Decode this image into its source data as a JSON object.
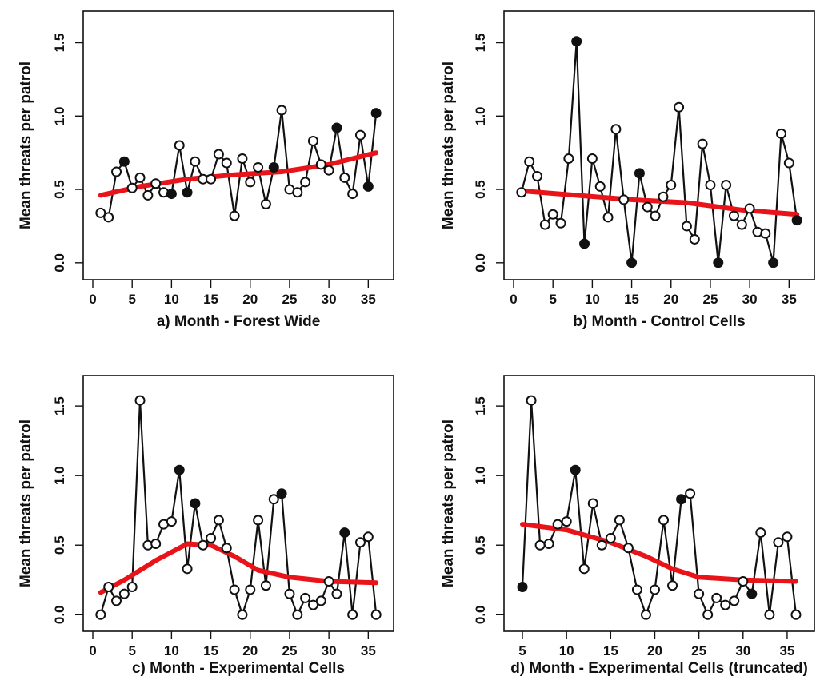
{
  "chart_data": [
    {
      "type": "line",
      "xlabel": "a) Month - Forest Wide",
      "ylabel": "Mean threats per patrol",
      "xlim": [
        0,
        37
      ],
      "ylim": [
        -0.05,
        1.65
      ],
      "xticks": [
        "0",
        "5",
        "10",
        "15",
        "20",
        "25",
        "30",
        "35"
      ],
      "yticks": [
        "0.0",
        "0.5",
        "1.0",
        "1.5"
      ],
      "grid": false,
      "series": [
        {
          "x": [
            1,
            2,
            3,
            4,
            5,
            6,
            7,
            8,
            9,
            10,
            11,
            12,
            13,
            14,
            15,
            16,
            17,
            18,
            19,
            20,
            21,
            22,
            23,
            24,
            25,
            26,
            27,
            28,
            29,
            30,
            31,
            32,
            33,
            34,
            35,
            36
          ],
          "y": [
            0.34,
            0.31,
            0.62,
            0.69,
            0.51,
            0.58,
            0.46,
            0.54,
            0.48,
            0.47,
            0.8,
            0.48,
            0.69,
            0.57,
            0.57,
            0.74,
            0.68,
            0.32,
            0.71,
            0.55,
            0.65,
            0.4,
            0.65,
            1.04,
            0.5,
            0.48,
            0.55,
            0.83,
            0.67,
            0.63,
            0.92,
            0.58,
            0.47,
            0.87,
            0.52,
            1.02
          ]
        },
        {
          "x": [
            1,
            36
          ],
          "y": [
            0.46,
            0.75
          ]
        }
      ],
      "trend": {
        "x": [
          1,
          6,
          12,
          18,
          24,
          30,
          36
        ],
        "y": [
          0.46,
          0.52,
          0.57,
          0.6,
          0.62,
          0.67,
          0.75
        ],
        "color": "#e8141a"
      }
    },
    {
      "type": "line",
      "xlabel": "b) Month - Control Cells",
      "ylabel": "Mean threats per patrol",
      "xlim": [
        0,
        37
      ],
      "ylim": [
        -0.05,
        1.65
      ],
      "xticks": [
        "0",
        "5",
        "10",
        "15",
        "20",
        "25",
        "30",
        "35"
      ],
      "yticks": [
        "0.0",
        "0.5",
        "1.0",
        "1.5"
      ],
      "grid": false,
      "series": [
        {
          "x": [
            1,
            2,
            3,
            4,
            5,
            6,
            7,
            8,
            9,
            10,
            11,
            12,
            13,
            14,
            15,
            16,
            17,
            18,
            19,
            20,
            21,
            22,
            23,
            24,
            25,
            26,
            27,
            28,
            29,
            30,
            31,
            32,
            33,
            34,
            35,
            36
          ],
          "y": [
            0.48,
            0.69,
            0.59,
            0.26,
            0.33,
            0.27,
            0.71,
            1.51,
            0.13,
            0.71,
            0.52,
            0.31,
            0.91,
            0.43,
            0.0,
            0.61,
            0.38,
            0.32,
            0.45,
            0.53,
            1.06,
            0.25,
            0.16,
            0.81,
            0.53,
            0.0,
            0.53,
            0.32,
            0.26,
            0.37,
            0.21,
            0.2,
            0.0,
            0.88,
            0.68,
            0.29
          ]
        }
      ],
      "trend": {
        "x": [
          1,
          8,
          15,
          22,
          29,
          36
        ],
        "y": [
          0.49,
          0.46,
          0.43,
          0.41,
          0.36,
          0.33
        ],
        "color": "#e8141a"
      }
    },
    {
      "type": "line",
      "xlabel": "c) Month - Experimental Cells",
      "ylabel": "Mean threats per patrol",
      "xlim": [
        0,
        37
      ],
      "ylim": [
        -0.05,
        1.65
      ],
      "xticks": [
        "0",
        "5",
        "10",
        "15",
        "20",
        "25",
        "30",
        "35"
      ],
      "yticks": [
        "0.0",
        "0.5",
        "1.0",
        "1.5"
      ],
      "grid": false,
      "series": [
        {
          "x": [
            1,
            2,
            3,
            4,
            5,
            6,
            7,
            8,
            9,
            10,
            11,
            12,
            13,
            14,
            15,
            16,
            17,
            18,
            19,
            20,
            21,
            22,
            23,
            24,
            25,
            26,
            27,
            28,
            29,
            30,
            31,
            32,
            33,
            34,
            35,
            36
          ],
          "y": [
            0.0,
            0.2,
            0.1,
            0.15,
            0.2,
            1.54,
            0.5,
            0.51,
            0.65,
            0.67,
            1.04,
            0.33,
            0.8,
            0.5,
            0.55,
            0.68,
            0.48,
            0.18,
            0.0,
            0.18,
            0.68,
            0.21,
            0.83,
            0.87,
            0.15,
            0.0,
            0.12,
            0.07,
            0.1,
            0.24,
            0.15,
            0.59,
            0.0,
            0.52,
            0.56,
            0.0
          ]
        }
      ],
      "trend": {
        "x": [
          1,
          4,
          8,
          12,
          15,
          18,
          21,
          25,
          30,
          36
        ],
        "y": [
          0.16,
          0.25,
          0.39,
          0.51,
          0.5,
          0.42,
          0.32,
          0.27,
          0.24,
          0.23
        ],
        "color": "#e8141a"
      }
    },
    {
      "type": "line",
      "xlabel": "d) Month - Experimental Cells (truncated)",
      "ylabel": "Mean threats per patrol",
      "xlim": [
        4,
        37
      ],
      "ylim": [
        -0.05,
        1.65
      ],
      "xticks": [
        "5",
        "10",
        "15",
        "20",
        "25",
        "30",
        "35"
      ],
      "yticks": [
        "0.0",
        "0.5",
        "1.0",
        "1.5"
      ],
      "grid": false,
      "series": [
        {
          "x": [
            5,
            6,
            7,
            8,
            9,
            10,
            11,
            12,
            13,
            14,
            15,
            16,
            17,
            18,
            19,
            20,
            21,
            22,
            23,
            24,
            25,
            26,
            27,
            28,
            29,
            30,
            31,
            32,
            33,
            34,
            35,
            36
          ],
          "y": [
            0.2,
            1.54,
            0.5,
            0.51,
            0.65,
            0.67,
            1.04,
            0.33,
            0.8,
            0.5,
            0.55,
            0.68,
            0.48,
            0.18,
            0.0,
            0.18,
            0.68,
            0.21,
            0.83,
            0.87,
            0.15,
            0.0,
            0.12,
            0.07,
            0.1,
            0.24,
            0.15,
            0.59,
            0.0,
            0.52,
            0.56,
            0.0
          ]
        }
      ],
      "trend": {
        "x": [
          5,
          10,
          15,
          19,
          22,
          25,
          30,
          36
        ],
        "y": [
          0.65,
          0.61,
          0.52,
          0.42,
          0.33,
          0.27,
          0.25,
          0.24
        ],
        "color": "#e8141a"
      }
    }
  ],
  "colors": {
    "line": "#111111",
    "trend": "#e8141a",
    "marker_hollow": "#ffffff",
    "marker_filled": "#111111"
  }
}
